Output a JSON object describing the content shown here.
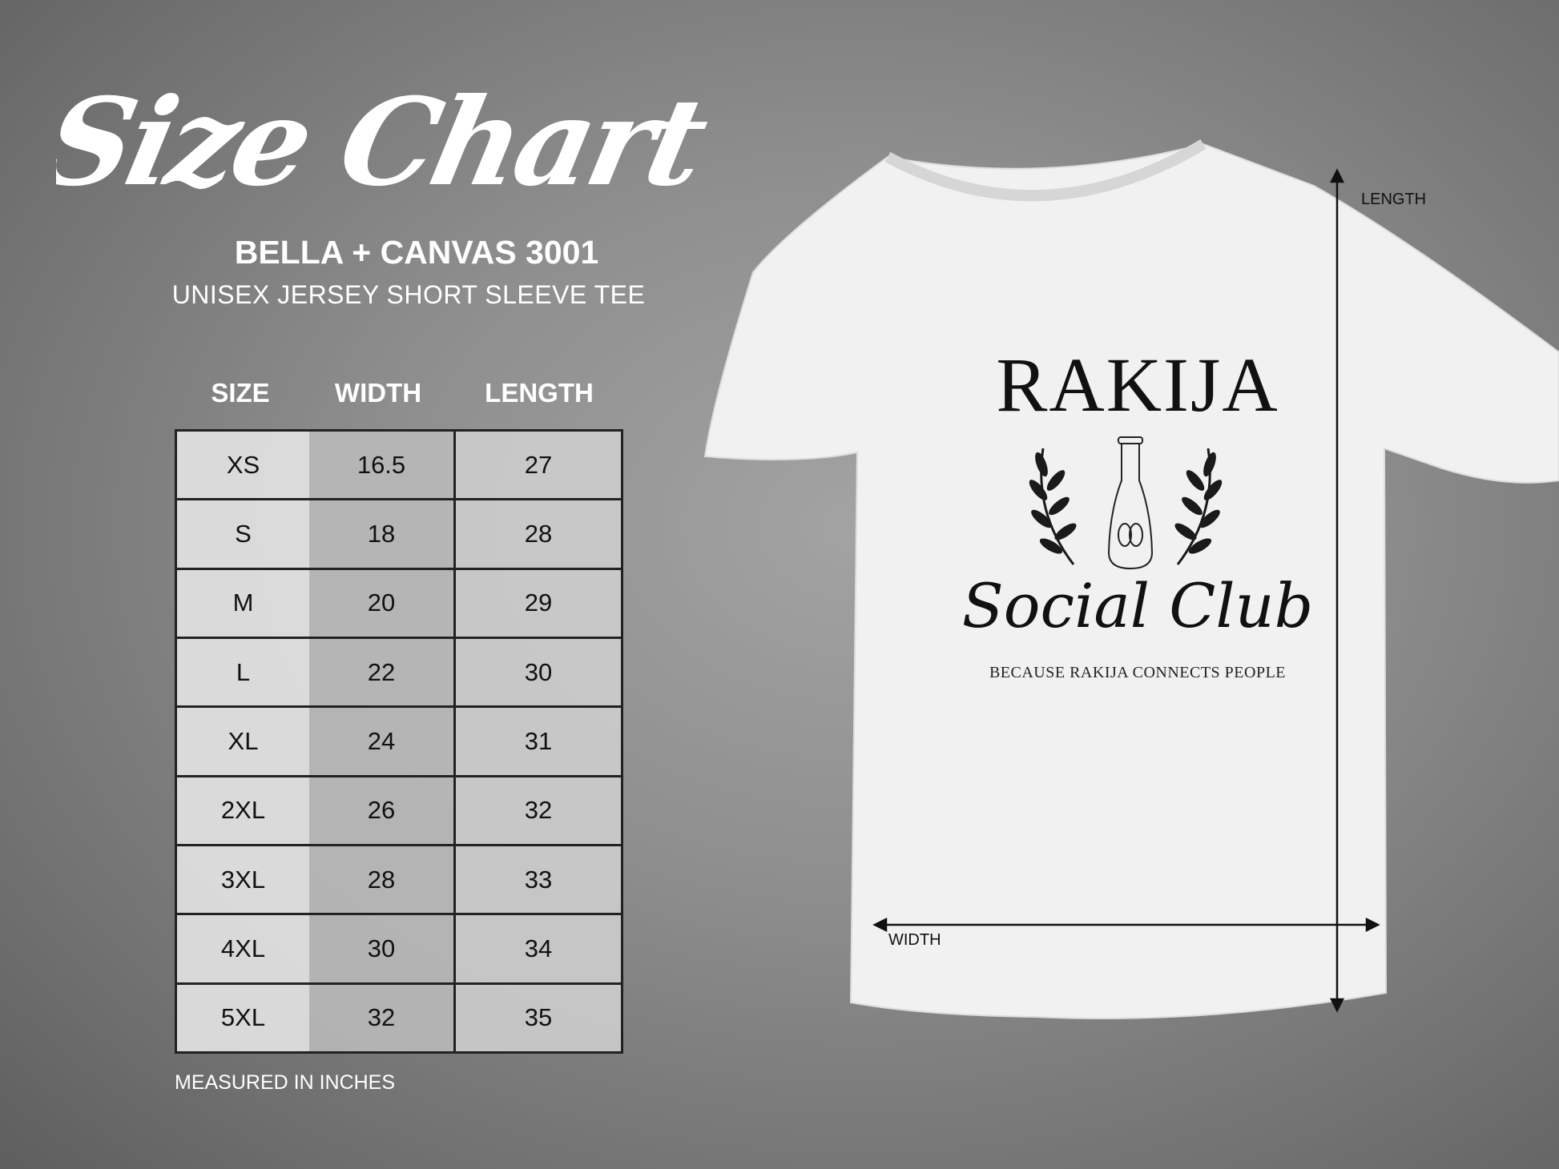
{
  "title": "Size Chart",
  "product": "BELLA + CANVAS 3001",
  "description": "UNISEX JERSEY SHORT SLEEVE TEE",
  "table": {
    "headers": [
      "SIZE",
      "WIDTH",
      "LENGTH"
    ],
    "rows": [
      [
        "XS",
        "16.5",
        "27"
      ],
      [
        "S",
        "18",
        "28"
      ],
      [
        "M",
        "20",
        "29"
      ],
      [
        "L",
        "22",
        "30"
      ],
      [
        "XL",
        "24",
        "31"
      ],
      [
        "2XL",
        "26",
        "32"
      ],
      [
        "3XL",
        "28",
        "33"
      ],
      [
        "4XL",
        "30",
        "34"
      ],
      [
        "5XL",
        "32",
        "35"
      ]
    ]
  },
  "footnote": "MEASURED IN INCHES",
  "shirt": {
    "print_title": "RAKIJA",
    "print_script": "Social Club",
    "print_tagline": "BECAUSE RAKIJA CONNECTS PEOPLE",
    "length_label": "LENGTH",
    "width_label": "WIDTH",
    "color": "#f2f2f2"
  }
}
